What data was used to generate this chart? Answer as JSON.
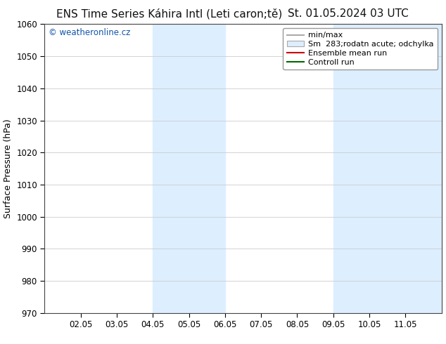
{
  "title_left": "ENS Time Series Káhira Intl (Leti caron;tě)",
  "title_right": "St. 01.05.2024 03 UTC",
  "ylabel": "Surface Pressure (hPa)",
  "ylim": [
    970,
    1060
  ],
  "yticks": [
    970,
    980,
    990,
    1000,
    1010,
    1020,
    1030,
    1040,
    1050,
    1060
  ],
  "xlim": [
    0,
    11
  ],
  "xtick_positions": [
    1,
    2,
    3,
    4,
    5,
    6,
    7,
    8,
    9,
    10
  ],
  "xtick_labels": [
    "02.05",
    "03.05",
    "04.05",
    "05.05",
    "06.05",
    "07.05",
    "08.05",
    "09.05",
    "10.05",
    "11.05"
  ],
  "band1_xmin": 3,
  "band1_xmax": 5,
  "band2_xmin": 8,
  "band2_xmax": 11,
  "band_color": "#ddeeff",
  "legend_entries": [
    {
      "label": "min/max",
      "color": "#aaaaaa",
      "type": "line"
    },
    {
      "label": "Sm  283;rodatn acute; odchylka",
      "color": "#ddeeff",
      "type": "fill"
    },
    {
      "label": "Ensemble mean run",
      "color": "#cc0000",
      "type": "line"
    },
    {
      "label": "Controll run",
      "color": "#006600",
      "type": "line"
    }
  ],
  "watermark": "© weatheronline.cz",
  "bg_color": "#ffffff",
  "plot_bg_color": "#ffffff",
  "title_fontsize": 11,
  "axis_label_fontsize": 9,
  "tick_fontsize": 8.5,
  "legend_fontsize": 8,
  "watermark_color": "#1155aa"
}
